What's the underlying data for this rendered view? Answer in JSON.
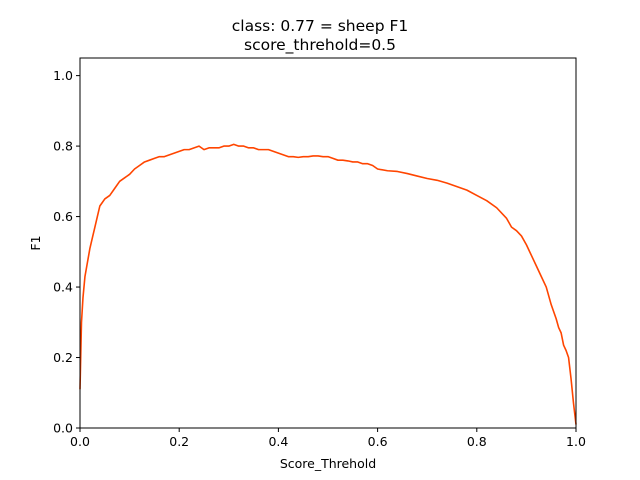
{
  "chart_data": {
    "type": "line",
    "title": "class: 0.77 = sheep F1",
    "subtitle": "score_threhold=0.5",
    "xlabel": "Score_Threhold",
    "ylabel": "F1",
    "xlim": [
      0.0,
      1.0
    ],
    "ylim": [
      0.0,
      1.05
    ],
    "xticks": [
      "0.0",
      "0.2",
      "0.4",
      "0.6",
      "0.8",
      "1.0"
    ],
    "yticks": [
      "0.0",
      "0.2",
      "0.4",
      "0.6",
      "0.8",
      "1.0"
    ],
    "grid": false,
    "line_color": "#ff4500",
    "series": [
      {
        "x": [
          0.0,
          0.003,
          0.006,
          0.01,
          0.015,
          0.02,
          0.025,
          0.03,
          0.035,
          0.04,
          0.045,
          0.05,
          0.06,
          0.07,
          0.08,
          0.09,
          0.1,
          0.11,
          0.12,
          0.13,
          0.14,
          0.15,
          0.16,
          0.17,
          0.18,
          0.19,
          0.2,
          0.21,
          0.22,
          0.23,
          0.24,
          0.25,
          0.26,
          0.27,
          0.28,
          0.29,
          0.3,
          0.31,
          0.32,
          0.33,
          0.34,
          0.35,
          0.36,
          0.37,
          0.38,
          0.39,
          0.4,
          0.41,
          0.42,
          0.43,
          0.44,
          0.45,
          0.46,
          0.47,
          0.48,
          0.49,
          0.5,
          0.51,
          0.52,
          0.53,
          0.54,
          0.55,
          0.56,
          0.57,
          0.58,
          0.59,
          0.6,
          0.62,
          0.64,
          0.66,
          0.68,
          0.7,
          0.72,
          0.74,
          0.76,
          0.78,
          0.8,
          0.82,
          0.84,
          0.86,
          0.87,
          0.88,
          0.89,
          0.9,
          0.91,
          0.92,
          0.93,
          0.94,
          0.95,
          0.96,
          0.965,
          0.97,
          0.975,
          0.98,
          0.985,
          0.99,
          0.995,
          1.0
        ],
        "y": [
          0.11,
          0.3,
          0.37,
          0.43,
          0.47,
          0.51,
          0.54,
          0.57,
          0.6,
          0.63,
          0.64,
          0.65,
          0.66,
          0.68,
          0.7,
          0.71,
          0.72,
          0.735,
          0.745,
          0.755,
          0.76,
          0.765,
          0.77,
          0.77,
          0.775,
          0.78,
          0.785,
          0.79,
          0.79,
          0.795,
          0.8,
          0.79,
          0.795,
          0.795,
          0.795,
          0.8,
          0.8,
          0.805,
          0.8,
          0.8,
          0.795,
          0.795,
          0.79,
          0.79,
          0.79,
          0.785,
          0.78,
          0.775,
          0.77,
          0.77,
          0.768,
          0.77,
          0.77,
          0.772,
          0.772,
          0.77,
          0.77,
          0.765,
          0.76,
          0.76,
          0.758,
          0.755,
          0.755,
          0.75,
          0.75,
          0.745,
          0.735,
          0.73,
          0.728,
          0.722,
          0.715,
          0.708,
          0.703,
          0.695,
          0.685,
          0.675,
          0.66,
          0.645,
          0.625,
          0.595,
          0.57,
          0.56,
          0.545,
          0.52,
          0.49,
          0.46,
          0.43,
          0.4,
          0.35,
          0.31,
          0.285,
          0.27,
          0.235,
          0.22,
          0.2,
          0.14,
          0.07,
          0.01
        ]
      }
    ]
  }
}
